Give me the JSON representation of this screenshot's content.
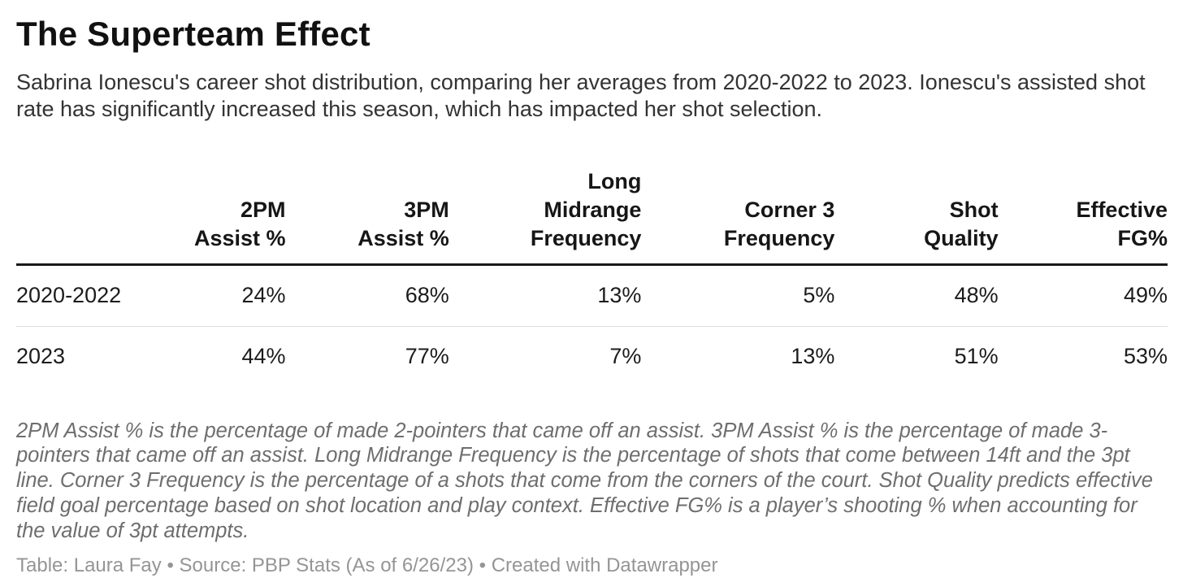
{
  "header": {
    "title": "The Superteam Effect",
    "description": "Sabrina Ionescu's career shot distribution, comparing her averages from 2020-2022 to 2023. Ionescu's assisted shot rate has significantly increased this season, which has impacted her shot selection."
  },
  "chart_data": {
    "type": "table",
    "title": "The Superteam Effect",
    "subtitle": "Sabrina Ionescu's career shot distribution, comparing her averages from 2020-2022 to 2023. Ionescu's assisted shot rate has significantly increased this season, which has impacted her shot selection.",
    "row_header": "",
    "columns": [
      {
        "label": "2PM Assist %",
        "lines": [
          "2PM",
          "Assist %"
        ]
      },
      {
        "label": "3PM Assist %",
        "lines": [
          "3PM",
          "Assist %"
        ]
      },
      {
        "label": "Long Midrange Frequency",
        "lines": [
          "Long",
          "Midrange",
          "Frequency"
        ]
      },
      {
        "label": "Corner 3 Frequency",
        "lines": [
          "Corner 3",
          "Frequency"
        ]
      },
      {
        "label": "Shot Quality",
        "lines": [
          "Shot",
          "Quality"
        ]
      },
      {
        "label": "Effective FG%",
        "lines": [
          "Effective",
          "FG%"
        ]
      }
    ],
    "rows": [
      {
        "label": "2020-2022",
        "values": [
          "24%",
          "68%",
          "13%",
          "5%",
          "48%",
          "49%"
        ]
      },
      {
        "label": "2023",
        "values": [
          "44%",
          "77%",
          "7%",
          "13%",
          "51%",
          "53%"
        ]
      }
    ],
    "notes": "2PM Assist % is the percentage of made 2-pointers that came off an assist. 3PM Assist % is the percentage of made 3-pointers that came off an assist. Long Midrange Frequency is the percentage of shots that come between 14ft and the 3pt line. Corner 3 Frequency is the percentage of a shots that come from the corners of the court. Shot Quality predicts effective field goal percentage based on shot location and play context. Effective FG% is a player’s shooting % when accounting for the value of 3pt attempts.",
    "attribution": {
      "table_label": "Table: ",
      "byline": "Laura Fay",
      "source_sep": " • Source: ",
      "source": "PBP Stats (As of 6/26/23)",
      "created_sep": " • Created with ",
      "tool": "Datawrapper"
    }
  },
  "colors": {
    "title_text": "#111111",
    "body_text": "#333333",
    "table_text": "#1c1c1c",
    "header_rule": "#191919",
    "row_divider": "#dedede",
    "notes_text": "#6e6e6e",
    "attribution_text": "#959595",
    "background": "#ffffff"
  }
}
